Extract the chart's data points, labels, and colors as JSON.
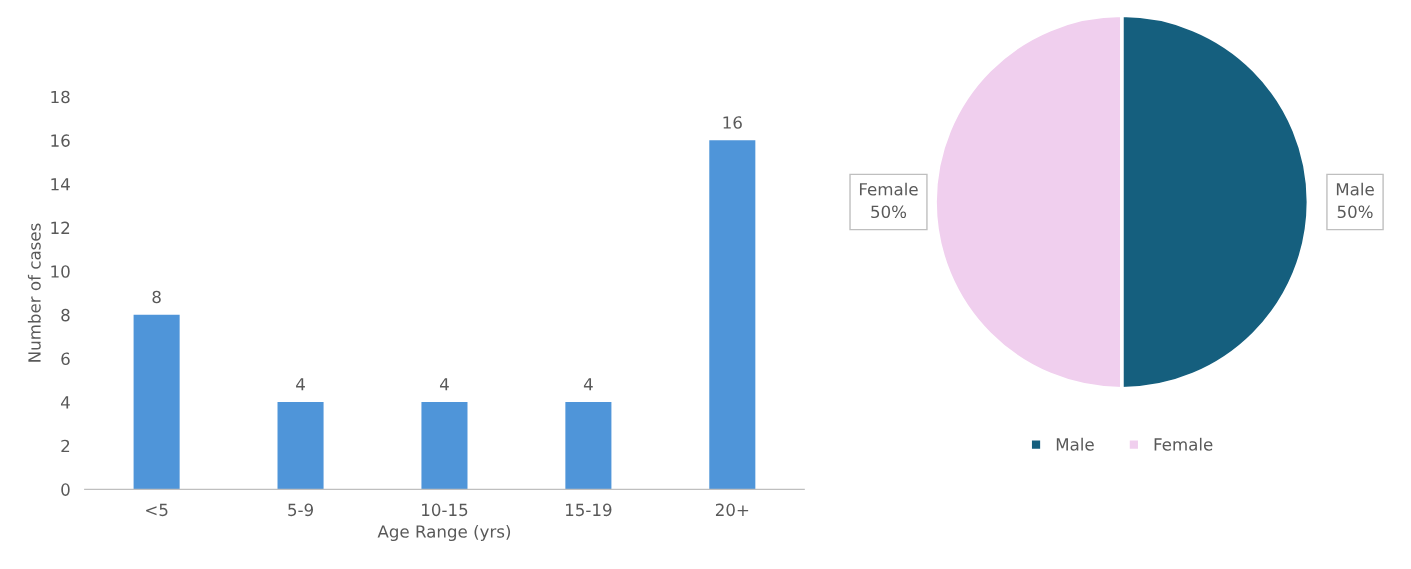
{
  "chart_data": [
    {
      "type": "bar",
      "xlabel": "Age Range (yrs)",
      "ylabel": "Number of cases",
      "categories": [
        "<5",
        "5-9",
        "10-15",
        "15-19",
        "20+"
      ],
      "values": [
        8,
        4,
        4,
        4,
        16
      ],
      "color": "#4f95d9",
      "ylim": [
        0,
        18
      ],
      "yticks": [
        0,
        2,
        4,
        6,
        8,
        10,
        12,
        14,
        16,
        18
      ],
      "data_labels": true
    },
    {
      "type": "pie",
      "categories": [
        "Male",
        "Female"
      ],
      "values": [
        50,
        50
      ],
      "colors": [
        "#155f7e",
        "#f0cfee"
      ],
      "value_labels": [
        "50%",
        "50%"
      ],
      "legend": "bottom"
    }
  ]
}
